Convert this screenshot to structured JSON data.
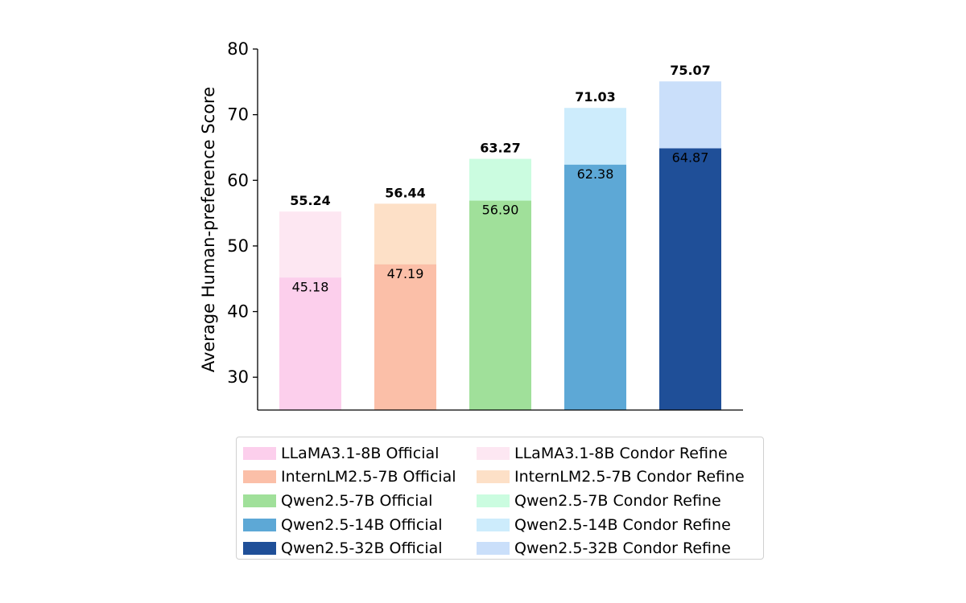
{
  "chart_data": {
    "type": "bar",
    "title": "",
    "xlabel": "",
    "ylabel": "Average Human-preference Score",
    "ylim": [
      25,
      80
    ],
    "yticks": [
      "30",
      "40",
      "50",
      "60",
      "70",
      "80"
    ],
    "grid": false,
    "legend_placement": "bottom-center, below chart",
    "series": [
      {
        "name": "LLaMA3.1-8B Official",
        "value": 45.18,
        "label": "45.18",
        "color": "#fccfec"
      },
      {
        "name": "InternLM2.5-7B Official",
        "value": 47.19,
        "label": "47.19",
        "color": "#fbbfa8"
      },
      {
        "name": "Qwen2.5-7B Official",
        "value": 56.9,
        "label": "56.90",
        "color": "#a0e09a"
      },
      {
        "name": "Qwen2.5-14B Official",
        "value": 62.38,
        "label": "62.38",
        "color": "#5da8d6"
      },
      {
        "name": "Qwen2.5-32B Official",
        "value": 64.87,
        "label": "64.87",
        "color": "#1f4f98"
      }
    ],
    "refine_series": [
      {
        "name": "LLaMA3.1-8B Condor Refine",
        "value": 55.24,
        "label": "55.24",
        "color": "#fde7f2"
      },
      {
        "name": "InternLM2.5-7B Condor Refine",
        "value": 56.44,
        "label": "56.44",
        "color": "#fde0c7"
      },
      {
        "name": "Qwen2.5-7B Condor Refine",
        "value": 63.27,
        "label": "63.27",
        "color": "#cbfce0"
      },
      {
        "name": "Qwen2.5-14B Condor Refine",
        "value": 71.03,
        "label": "71.03",
        "color": "#cdecfc"
      },
      {
        "name": "Qwen2.5-32B Condor Refine",
        "value": 75.07,
        "label": "75.07",
        "color": "#cadffa"
      }
    ]
  },
  "legend": {
    "items": [
      {
        "label": "LLaMA3.1-8B Official",
        "color": "#fccfec"
      },
      {
        "label": "LLaMA3.1-8B Condor Refine",
        "color": "#fde7f2"
      },
      {
        "label": "InternLM2.5-7B Official",
        "color": "#fbbfa8"
      },
      {
        "label": "InternLM2.5-7B Condor Refine",
        "color": "#fde0c7"
      },
      {
        "label": "Qwen2.5-7B Official",
        "color": "#a0e09a"
      },
      {
        "label": "Qwen2.5-7B Condor Refine",
        "color": "#cbfce0"
      },
      {
        "label": "Qwen2.5-14B Official",
        "color": "#5da8d6"
      },
      {
        "label": "Qwen2.5-14B Condor Refine",
        "color": "#cdecfc"
      },
      {
        "label": "Qwen2.5-32B Official",
        "color": "#1f4f98"
      },
      {
        "label": "Qwen2.5-32B Condor Refine",
        "color": "#cadffa"
      }
    ]
  }
}
